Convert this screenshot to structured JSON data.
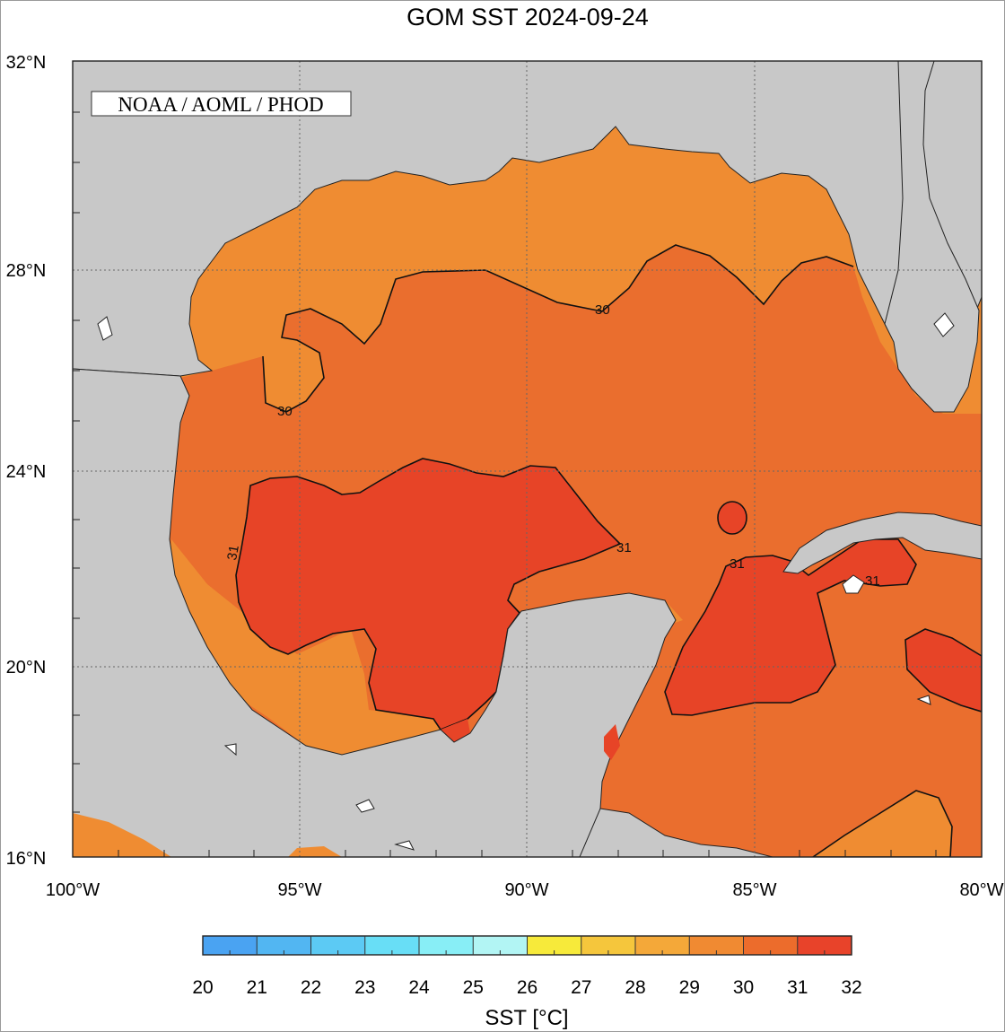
{
  "title": "GOM SST  2024-09-24",
  "credit": "NOAA / AOML / PHOD",
  "latitude_labels": [
    "32°N",
    "28°N",
    "24°N",
    "20°N",
    "16°N"
  ],
  "longitude_labels": [
    "100°W",
    "95°W",
    "90°W",
    "85°W",
    "80°W"
  ],
  "contour_labels": [
    "30",
    "30",
    "31",
    "31",
    "31",
    "31"
  ],
  "colorbar": {
    "title": "SST [°C]",
    "tick_labels": [
      "20",
      "21",
      "22",
      "23",
      "24",
      "25",
      "26",
      "27",
      "28",
      "29",
      "30",
      "31",
      "32"
    ],
    "colors": [
      "#3d8ff0",
      "#4aa3f2",
      "#52b6f2",
      "#5ccaf4",
      "#68def6",
      "#88eef6",
      "#b2f5f4",
      "#f7ea3a",
      "#f5c63c",
      "#f4a839",
      "#f08a32",
      "#ec6c2c",
      "#e8432a"
    ]
  },
  "colors": {
    "land": "#c8c8c8",
    "sst_29_30": "#ef8c32",
    "sst_30_31": "#ea6e2e",
    "sst_31_32": "#e74427",
    "sst_28_29": "#f2a83a",
    "sst_27_28": "#f4c43c",
    "sst_26_27": "#f6e33e"
  }
}
